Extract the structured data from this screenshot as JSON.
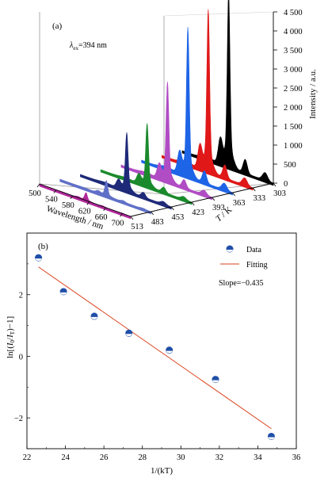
{
  "chart_data": [
    {
      "type": "area",
      "panel_label": "(a)",
      "annotation": {
        "lambda": "λ",
        "subscript": "ex",
        "text": "=394 nm"
      },
      "xlabel": "Wavelength / nm",
      "ylabel": "Intensity / a.u.",
      "zlabel_T": "T",
      "zlabel_unit": " / K",
      "x_ticks": [
        "500",
        "540",
        "580",
        "620",
        "660",
        "700"
      ],
      "xlim": [
        500,
        720
      ],
      "z_ticks": [
        "513",
        "483",
        "453",
        "423",
        "393",
        "363",
        "333",
        "303"
      ],
      "y_ticks": [
        "0",
        "500",
        "1 000",
        "1 500",
        "2 000",
        "2 500",
        "3 000",
        "3 500",
        "4 000",
        "4 500"
      ],
      "ylim": [
        0,
        4500
      ],
      "peak_wavelength": 612,
      "series": [
        {
          "temperature": 303,
          "peak": 4000,
          "color": "#000000"
        },
        {
          "temperature": 333,
          "peak": 3750,
          "color": "#e01818"
        },
        {
          "temperature": 363,
          "peak": 3450,
          "color": "#1e64e6"
        },
        {
          "temperature": 393,
          "peak": 2300,
          "color": "#b04cc4"
        },
        {
          "temperature": 423,
          "peak": 1450,
          "color": "#1a8a2c"
        },
        {
          "temperature": 453,
          "peak": 1350,
          "color": "#1e2a78"
        },
        {
          "temperature": 483,
          "peak": 350,
          "color": "#6070c8"
        },
        {
          "temperature": 513,
          "peak": 180,
          "color": "#b0289a"
        }
      ]
    },
    {
      "type": "scatter",
      "panel_label": "(b)",
      "xlabel": "1/(kT)",
      "ylabel": "ln[(I0/IT)−1]",
      "ylabel_parts": {
        "pre": "ln[(",
        "I1": "I",
        "s1": "0",
        "slash": "/",
        "I2": "I",
        "s2": "T",
        "post": ")−1]"
      },
      "xlim": [
        22,
        36
      ],
      "ylim": [
        -3,
        4
      ],
      "x_ticks": [
        "22",
        "24",
        "26",
        "28",
        "30",
        "32",
        "34",
        "36"
      ],
      "y_ticks": [
        "−2",
        "0",
        "2"
      ],
      "legend": {
        "data": "Data",
        "fit": "Fitting"
      },
      "annotation": "Slope=−0.435",
      "points": [
        {
          "x": 22.6,
          "y": 3.2
        },
        {
          "x": 23.9,
          "y": 2.1
        },
        {
          "x": 25.5,
          "y": 1.3
        },
        {
          "x": 27.3,
          "y": 0.75
        },
        {
          "x": 29.4,
          "y": 0.2
        },
        {
          "x": 31.8,
          "y": -0.75
        },
        {
          "x": 34.7,
          "y": -2.6
        }
      ],
      "fit": {
        "slope": -0.435,
        "x_start": 22.6,
        "x_end": 34.7,
        "y_start": 2.9,
        "y_end": -2.35
      },
      "colors": {
        "marker": "#1f4fa8",
        "fit": "#d9401a"
      }
    }
  ]
}
